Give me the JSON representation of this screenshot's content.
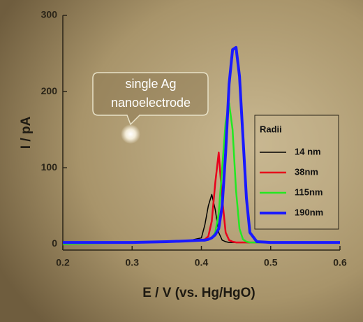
{
  "chart_data": {
    "type": "line",
    "x_label": "E / V (vs. Hg/HgO)",
    "y_label": "I / pA",
    "annotation": [
      "single Ag",
      "nanoelectrode"
    ],
    "legend_title": "Radii",
    "x": [
      0.2,
      0.25,
      0.3,
      0.35,
      0.38,
      0.4,
      0.405,
      0.41,
      0.415,
      0.42,
      0.425,
      0.43,
      0.435,
      0.44,
      0.445,
      0.45,
      0.455,
      0.46,
      0.465,
      0.47,
      0.48,
      0.5,
      0.55,
      0.6
    ],
    "series": [
      {
        "name": "14 nm",
        "color": "#000000",
        "width": 1.5,
        "values": [
          2,
          2,
          2,
          3,
          4,
          8,
          25,
          50,
          65,
          45,
          15,
          5,
          3,
          2,
          2,
          2,
          2,
          2,
          2,
          2,
          2,
          2,
          2,
          2
        ]
      },
      {
        "name": "38nm",
        "color": "#e8001c",
        "width": 2.5,
        "values": [
          2,
          2,
          2,
          3,
          4,
          5,
          6,
          10,
          30,
          80,
          120,
          60,
          15,
          5,
          3,
          2,
          2,
          2,
          2,
          2,
          2,
          2,
          2,
          2
        ]
      },
      {
        "name": "115nm",
        "color": "#22e822",
        "width": 2.5,
        "values": [
          0,
          1,
          2,
          3,
          4,
          5,
          5,
          6,
          8,
          15,
          40,
          100,
          160,
          185,
          150,
          70,
          20,
          6,
          3,
          2,
          2,
          2,
          2,
          2
        ]
      },
      {
        "name": "190nm",
        "color": "#1a1aff",
        "width": 4,
        "values": [
          2,
          2,
          2,
          3,
          4,
          5,
          5,
          6,
          8,
          12,
          20,
          50,
          120,
          210,
          255,
          258,
          220,
          140,
          60,
          15,
          3,
          2,
          2,
          2
        ]
      }
    ],
    "xlim": [
      0.2,
      0.6
    ],
    "xticks": [
      0.2,
      0.3,
      0.4,
      0.5,
      0.6
    ],
    "ylim": [
      -8,
      300
    ],
    "yticks": [
      0,
      100,
      200,
      300
    ]
  }
}
